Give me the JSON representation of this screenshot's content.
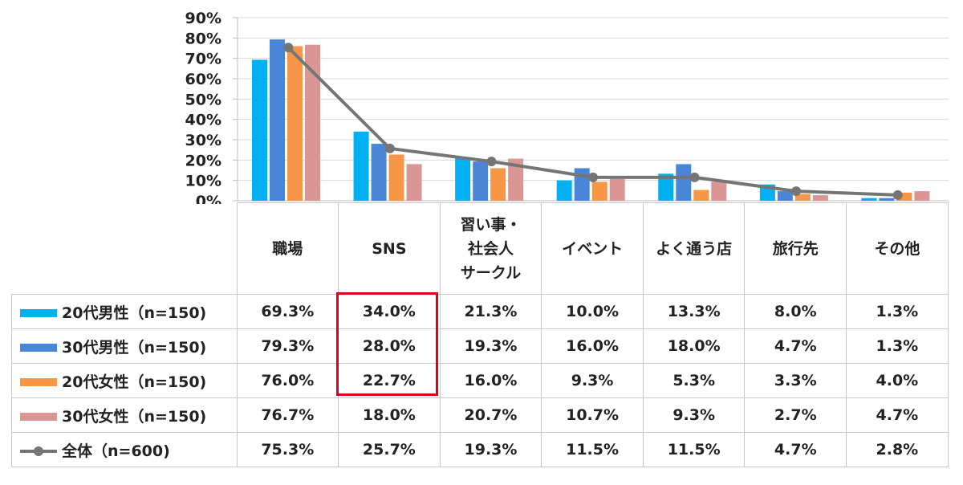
{
  "chart_data": {
    "type": "bar",
    "categories": [
      "職場",
      "SNS",
      "習い事・\n社会人\nサークル",
      "イベント",
      "よく通う店",
      "旅行先",
      "その他"
    ],
    "series": [
      {
        "name": "20代男性（n=150)",
        "color": "#00b0f0",
        "type": "bar",
        "values": [
          69.3,
          34.0,
          21.3,
          10.0,
          13.3,
          8.0,
          1.3
        ],
        "labels": [
          "69.3%",
          "34.0%",
          "21.3%",
          "10.0%",
          "13.3%",
          "8.0%",
          "1.3%"
        ]
      },
      {
        "name": "30代男性（n=150)",
        "color": "#4a86d8",
        "type": "bar",
        "values": [
          79.3,
          28.0,
          19.3,
          16.0,
          18.0,
          4.7,
          1.3
        ],
        "labels": [
          "79.3%",
          "28.0%",
          "19.3%",
          "16.0%",
          "18.0%",
          "4.7%",
          "1.3%"
        ]
      },
      {
        "name": "20代女性（n=150)",
        "color": "#f79646",
        "type": "bar",
        "values": [
          76.0,
          22.7,
          16.0,
          9.3,
          5.3,
          3.3,
          4.0
        ],
        "labels": [
          "76.0%",
          "22.7%",
          "16.0%",
          "9.3%",
          "5.3%",
          "3.3%",
          "4.0%"
        ]
      },
      {
        "name": "30代女性（n=150)",
        "color": "#d99694",
        "type": "bar",
        "values": [
          76.7,
          18.0,
          20.7,
          10.7,
          9.3,
          2.7,
          4.7
        ],
        "labels": [
          "76.7%",
          "18.0%",
          "20.7%",
          "10.7%",
          "9.3%",
          "2.7%",
          "4.7%"
        ]
      },
      {
        "name": "全体（n=600)",
        "color": "#757575",
        "type": "line",
        "values": [
          75.3,
          25.7,
          19.3,
          11.5,
          11.5,
          4.7,
          2.8
        ],
        "labels": [
          "75.3%",
          "25.7%",
          "19.3%",
          "11.5%",
          "11.5%",
          "4.7%",
          "2.8%"
        ]
      }
    ],
    "ylim": [
      0,
      90
    ],
    "yticks": [
      "0%",
      "10%",
      "20%",
      "30%",
      "40%",
      "50%",
      "60%",
      "70%",
      "80%",
      "90%"
    ],
    "grid": true,
    "legend": "data-table-left",
    "highlight_category": "SNS",
    "highlight_color": "#e0001b"
  }
}
